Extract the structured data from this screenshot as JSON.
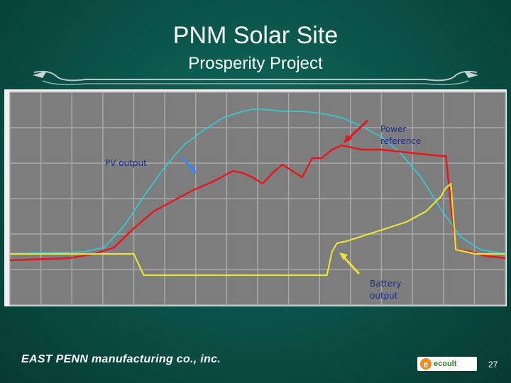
{
  "slide": {
    "title": "PNM Solar Site",
    "subtitle": "Prosperity Project",
    "footer_company": "EAST PENN manufacturing co., inc.",
    "partner_logo_text": "ecoult",
    "page_number": "27"
  },
  "colors": {
    "background": "#0a5046",
    "plot_bg": "#7d7d7d",
    "grid": "#a8a8a8",
    "pv": "#38c6d2",
    "power": "#e8161c",
    "battery": "#e8e23a",
    "annotation_text": "#1c2f8c",
    "arrow_blue": "#3a86f2",
    "arrow_red": "#e8161c",
    "arrow_yellow": "#e8e23a"
  },
  "chart_data": {
    "type": "line",
    "title": "",
    "xlabel": "",
    "ylabel": "",
    "xlim": [
      0,
      100
    ],
    "ylim": [
      0,
      100
    ],
    "grid": true,
    "grid_divisions": {
      "x": 16,
      "y": 6
    },
    "annotations": [
      {
        "text": "PV output",
        "points_to": "PV output"
      },
      {
        "text": "Power reference",
        "points_to": "Power reference"
      },
      {
        "text": "Battery output",
        "points_to": "Battery output"
      }
    ],
    "series": [
      {
        "name": "PV output",
        "x": [
          0,
          15,
          19,
          23,
          27,
          31,
          35,
          39,
          43,
          47,
          49,
          51,
          55,
          59,
          63,
          67,
          71,
          75,
          79,
          83,
          87,
          91,
          95,
          100
        ],
        "values": [
          24,
          25,
          27,
          37,
          51,
          64,
          75,
          82,
          88,
          91,
          92,
          92,
          91,
          91,
          90,
          88,
          84,
          79,
          71,
          60,
          45,
          32,
          26,
          24
        ]
      },
      {
        "name": "Power reference",
        "x": [
          0,
          12,
          17,
          21,
          25,
          29,
          33,
          37,
          41,
          45,
          47,
          49,
          51,
          53,
          55,
          59,
          61,
          63,
          65,
          67,
          71,
          75,
          79,
          83,
          87,
          88,
          90,
          93,
          96,
          100
        ],
        "values": [
          21,
          22,
          24,
          27,
          36,
          44,
          49,
          54,
          58,
          63,
          62,
          60,
          57,
          62,
          66,
          60,
          69,
          69,
          73,
          75,
          73,
          73,
          72,
          71,
          70,
          70,
          26,
          25,
          23,
          22
        ]
      },
      {
        "name": "Battery output",
        "x": [
          0,
          25,
          26,
          27,
          28,
          32,
          36,
          40,
          44,
          48,
          52,
          55,
          58,
          60,
          62,
          64,
          65,
          66,
          68,
          72,
          76,
          80,
          84,
          87,
          88,
          89,
          90,
          94,
          100
        ],
        "values": [
          24,
          24,
          19,
          14,
          14,
          14,
          14,
          14,
          14,
          14,
          14,
          14,
          14,
          14,
          14,
          14,
          25,
          29,
          30,
          33,
          36,
          39,
          44,
          51,
          55,
          57,
          26,
          24,
          24
        ]
      }
    ]
  }
}
